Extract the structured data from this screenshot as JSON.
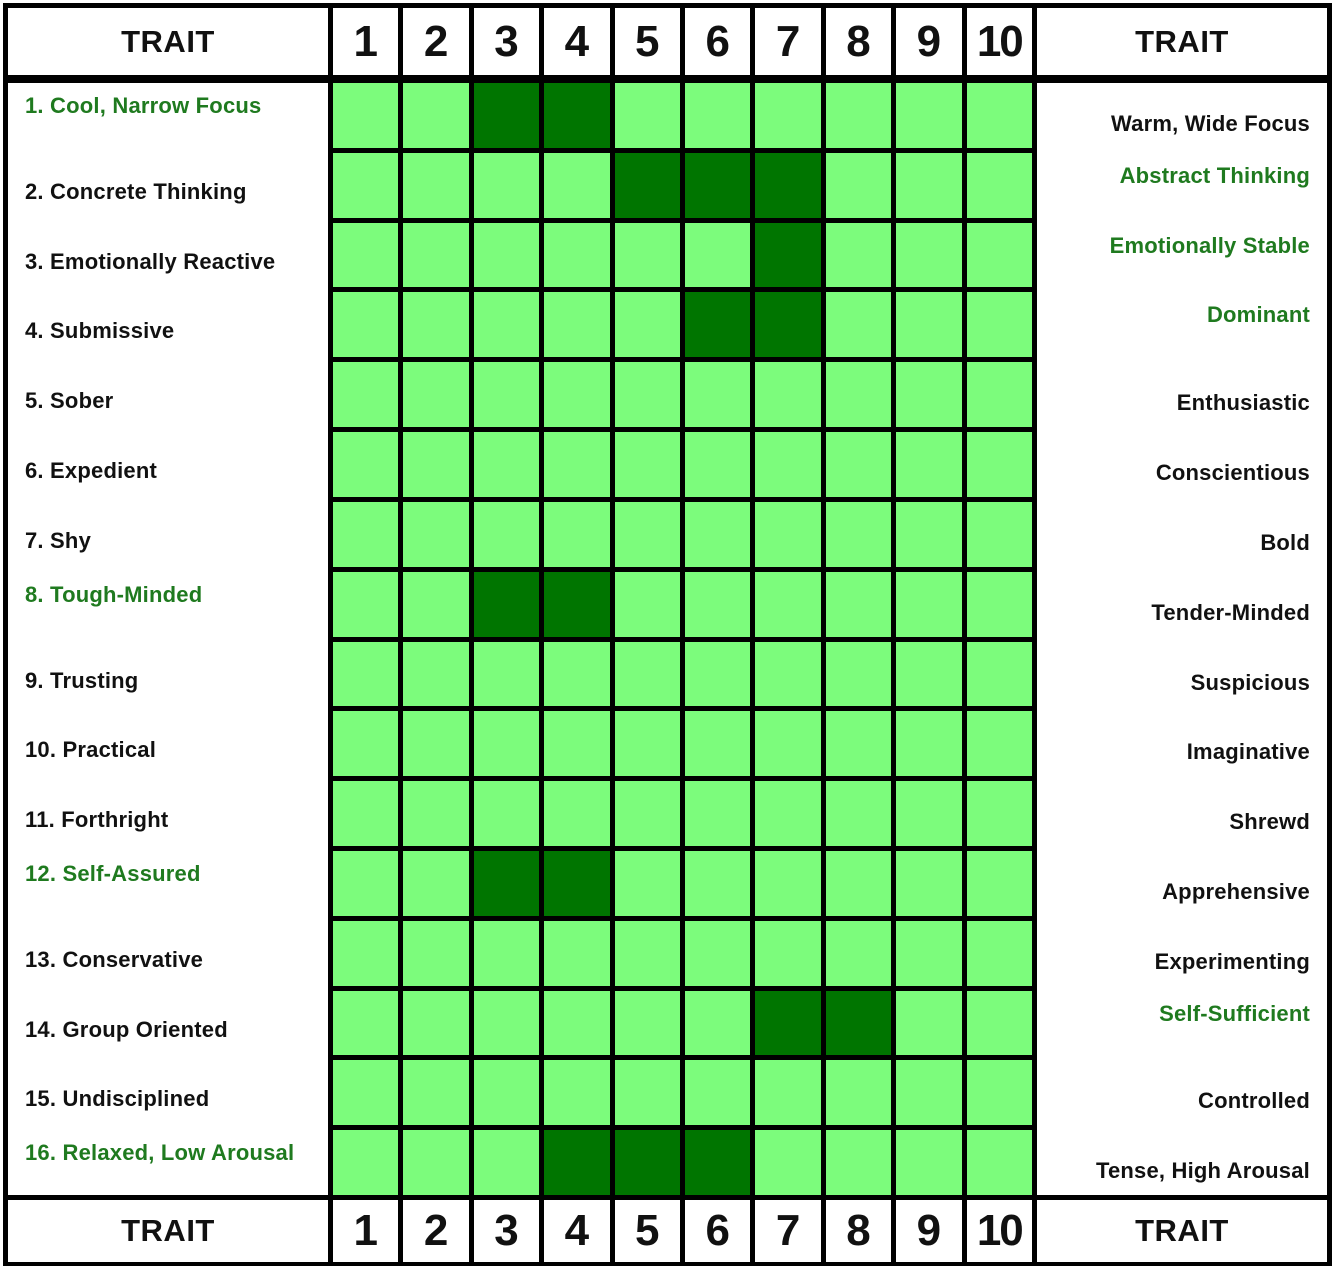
{
  "colors": {
    "cell_light": "#7CFC7C",
    "cell_dark": "#007500",
    "grid_line": "#000000",
    "highlight_text": "#1f7a1f",
    "normal_text": "#111111"
  },
  "chart_data": {
    "type": "heatmap",
    "header_left": "TRAIT",
    "header_right": "TRAIT",
    "footer_left": "TRAIT",
    "footer_right": "TRAIT",
    "columns": [
      "1",
      "2",
      "3",
      "4",
      "5",
      "6",
      "7",
      "8",
      "9",
      "10"
    ],
    "rows": [
      {
        "left": "1. Cool, Narrow Focus",
        "right": "Warm, Wide Focus",
        "left_highlight": true,
        "right_highlight": false,
        "filled": [
          3,
          4
        ]
      },
      {
        "left": "2. Concrete Thinking",
        "right": "Abstract Thinking",
        "left_highlight": false,
        "right_highlight": true,
        "filled": [
          5,
          6,
          7
        ]
      },
      {
        "left": "3. Emotionally Reactive",
        "right": "Emotionally Stable",
        "left_highlight": false,
        "right_highlight": true,
        "filled": [
          7
        ]
      },
      {
        "left": "4. Submissive",
        "right": "Dominant",
        "left_highlight": false,
        "right_highlight": true,
        "filled": [
          6,
          7
        ]
      },
      {
        "left": "5. Sober",
        "right": "Enthusiastic",
        "left_highlight": false,
        "right_highlight": false,
        "filled": []
      },
      {
        "left": "6. Expedient",
        "right": "Conscientious",
        "left_highlight": false,
        "right_highlight": false,
        "filled": []
      },
      {
        "left": "7. Shy",
        "right": "Bold",
        "left_highlight": false,
        "right_highlight": false,
        "filled": []
      },
      {
        "left": "8. Tough-Minded",
        "right": "Tender-Minded",
        "left_highlight": true,
        "right_highlight": false,
        "filled": [
          3,
          4
        ]
      },
      {
        "left": "9. Trusting",
        "right": "Suspicious",
        "left_highlight": false,
        "right_highlight": false,
        "filled": []
      },
      {
        "left": "10. Practical",
        "right": "Imaginative",
        "left_highlight": false,
        "right_highlight": false,
        "filled": []
      },
      {
        "left": "11. Forthright",
        "right": "Shrewd",
        "left_highlight": false,
        "right_highlight": false,
        "filled": []
      },
      {
        "left": "12. Self-Assured",
        "right": "Apprehensive",
        "left_highlight": true,
        "right_highlight": false,
        "filled": [
          3,
          4
        ]
      },
      {
        "left": "13. Conservative",
        "right": "Experimenting",
        "left_highlight": false,
        "right_highlight": false,
        "filled": []
      },
      {
        "left": "14. Group Oriented",
        "right": "Self-Sufficient",
        "left_highlight": false,
        "right_highlight": true,
        "filled": [
          7,
          8
        ]
      },
      {
        "left": "15. Undisciplined",
        "right": "Controlled",
        "left_highlight": false,
        "right_highlight": false,
        "filled": []
      },
      {
        "left": "16. Relaxed, Low Arousal",
        "right": "Tense, High Arousal",
        "left_highlight": true,
        "right_highlight": false,
        "filled": [
          4,
          5,
          6
        ]
      }
    ]
  }
}
